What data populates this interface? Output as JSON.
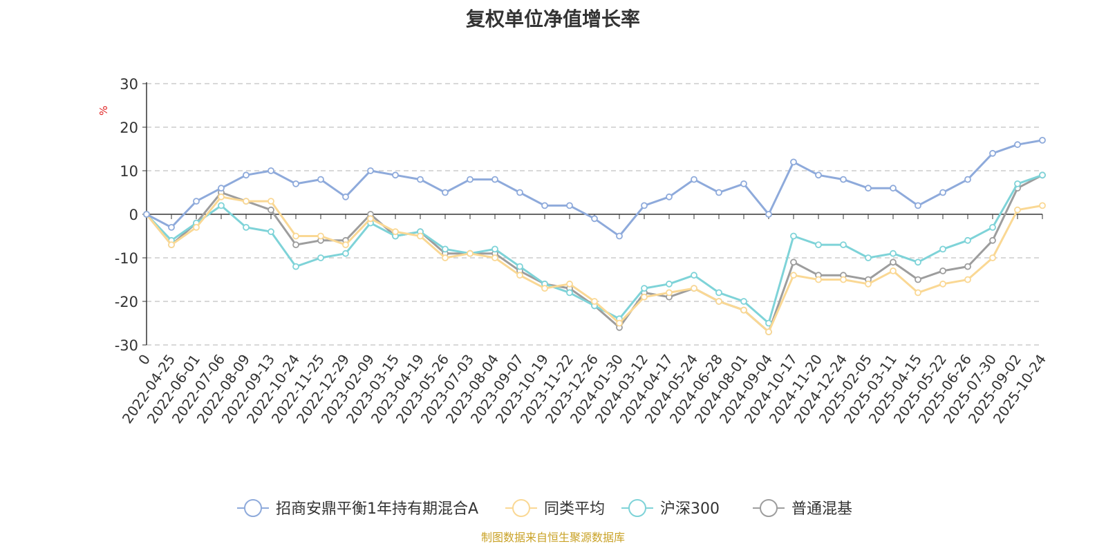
{
  "chart_data": {
    "type": "line",
    "title": "复权单位净值增长率",
    "ylabel": "%",
    "xlabel": "",
    "ylim": [
      -30,
      30
    ],
    "yticks": [
      30,
      20,
      10,
      0,
      -10,
      -20,
      -30
    ],
    "yticklabels": [
      "30",
      "20",
      "10",
      "0",
      "-10",
      "-20",
      "-30"
    ],
    "categories": [
      "0",
      "2022-04-25",
      "2022-06-01",
      "2022-07-06",
      "2022-08-09",
      "2022-09-13",
      "2022-10-24",
      "2022-11-25",
      "2022-12-29",
      "2023-02-09",
      "2023-03-15",
      "2023-04-19",
      "2023-05-26",
      "2023-07-03",
      "2023-08-04",
      "2023-09-07",
      "2023-10-19",
      "2023-11-22",
      "2023-12-26",
      "2024-01-30",
      "2024-03-12",
      "2024-04-17",
      "2024-05-24",
      "2024-06-28",
      "2024-08-01",
      "2024-09-04",
      "2024-10-17",
      "2024-11-20",
      "2024-12-24",
      "2025-02-05",
      "2025-03-11",
      "2025-04-15",
      "2025-05-22",
      "2025-06-26",
      "2025-07-30",
      "2025-09-02",
      "2025-10-24"
    ],
    "series": [
      {
        "name": "招商安鼎平衡1年持有期混合A",
        "color": "#8eaadb",
        "values": [
          0,
          -3,
          3,
          6,
          9,
          10,
          7,
          8,
          4,
          10,
          9,
          8,
          5,
          8,
          8,
          5,
          2,
          2,
          -1,
          -5,
          2,
          4,
          8,
          5,
          7,
          0,
          12,
          9,
          8,
          6,
          6,
          2,
          5,
          8,
          14,
          16,
          17
        ]
      },
      {
        "name": "同类平均",
        "color": "#fad894",
        "values": [
          0,
          -7,
          -3,
          4,
          3,
          3,
          -5,
          -5,
          -7,
          -1,
          -4,
          -5,
          -10,
          -9,
          -10,
          -14,
          -17,
          -16,
          -20,
          -25,
          -19,
          -18,
          -17,
          -20,
          -22,
          -27,
          -14,
          -15,
          -15,
          -16,
          -13,
          -18,
          -16,
          -15,
          -10,
          1,
          2
        ]
      },
      {
        "name": "沪深300",
        "color": "#7ed3d8",
        "values": [
          0,
          -6,
          -2,
          2,
          -3,
          -4,
          -12,
          -10,
          -9,
          -2,
          -5,
          -4,
          -8,
          -9,
          -8,
          -12,
          -16,
          -18,
          -21,
          -24,
          -17,
          -16,
          -14,
          -18,
          -20,
          -25,
          -5,
          -7,
          -7,
          -10,
          -9,
          -11,
          -8,
          -6,
          -3,
          7,
          9
        ]
      },
      {
        "name": "普通混基",
        "color": "#9d9d9d",
        "values": [
          0,
          -7,
          -2,
          5,
          3,
          1,
          -7,
          -6,
          -6,
          0,
          -5,
          -4,
          -9,
          -9,
          -9,
          -13,
          -16,
          -17,
          -21,
          -26,
          -18,
          -19,
          -17,
          -20,
          -22,
          -27,
          -11,
          -14,
          -14,
          -15,
          -11,
          -15,
          -13,
          -12,
          -6,
          6,
          9
        ]
      }
    ],
    "legend_position": "bottom-center",
    "grid": true
  },
  "source": {
    "text": "制图数据来自恒生聚源数据库",
    "color": "#c9a227"
  }
}
